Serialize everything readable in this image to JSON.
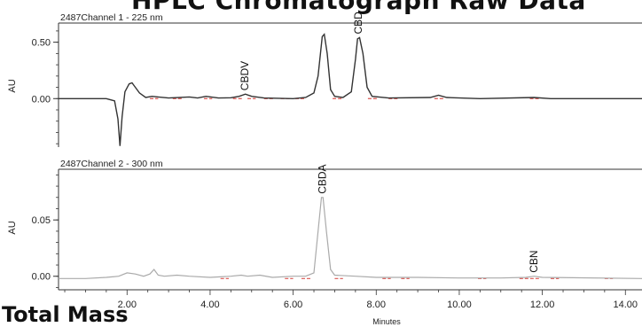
{
  "page": {
    "title": "HPLC Chromatograph Raw Data",
    "footer_title": "Total Mass"
  },
  "chart_data": [
    {
      "type": "line",
      "panel": "top",
      "channel_label": "2487Channel 1 - 225 nm",
      "xlabel": "",
      "ylabel": "AU",
      "xlim": [
        0.35,
        14.4
      ],
      "ylim": [
        -0.43,
        0.67
      ],
      "yticks": [
        0.0,
        0.5
      ],
      "ytick_labels": [
        "0.00",
        "0.50"
      ],
      "baseline": 0.0,
      "line_color": "#333333",
      "integration_color": "#d9534f",
      "series": [
        {
          "points": [
            [
              0.35,
              0.0
            ],
            [
              1.5,
              0.0
            ],
            [
              1.7,
              -0.02
            ],
            [
              1.78,
              -0.18
            ],
            [
              1.83,
              -0.42
            ],
            [
              1.88,
              -0.16
            ],
            [
              1.95,
              0.06
            ],
            [
              2.05,
              0.13
            ],
            [
              2.12,
              0.14
            ],
            [
              2.2,
              0.1
            ],
            [
              2.3,
              0.05
            ],
            [
              2.45,
              0.01
            ],
            [
              2.6,
              0.02
            ],
            [
              2.75,
              0.015
            ],
            [
              3.0,
              0.005
            ],
            [
              3.5,
              0.015
            ],
            [
              3.7,
              0.005
            ],
            [
              3.9,
              0.02
            ],
            [
              4.2,
              0.005
            ],
            [
              4.5,
              0.008
            ],
            [
              4.7,
              0.02
            ],
            [
              4.85,
              0.04
            ],
            [
              5.0,
              0.02
            ],
            [
              5.3,
              0.005
            ],
            [
              6.0,
              0.0
            ],
            [
              6.3,
              0.01
            ],
            [
              6.5,
              0.05
            ],
            [
              6.6,
              0.2
            ],
            [
              6.7,
              0.55
            ],
            [
              6.75,
              0.57
            ],
            [
              6.82,
              0.4
            ],
            [
              6.9,
              0.08
            ],
            [
              7.0,
              0.02
            ],
            [
              7.2,
              0.01
            ],
            [
              7.4,
              0.06
            ],
            [
              7.5,
              0.35
            ],
            [
              7.55,
              0.53
            ],
            [
              7.6,
              0.54
            ],
            [
              7.68,
              0.4
            ],
            [
              7.78,
              0.1
            ],
            [
              7.9,
              0.02
            ],
            [
              8.3,
              0.005
            ],
            [
              9.3,
              0.01
            ],
            [
              9.5,
              0.03
            ],
            [
              9.7,
              0.01
            ],
            [
              10.5,
              0.0
            ],
            [
              11.8,
              0.01
            ],
            [
              12.2,
              0.0
            ],
            [
              14.4,
              0.0
            ]
          ]
        }
      ],
      "integration_segments": [
        [
          2.55,
          2.75
        ],
        [
          3.1,
          3.35
        ],
        [
          3.85,
          4.05
        ],
        [
          4.55,
          4.8
        ],
        [
          4.9,
          5.1
        ],
        [
          5.3,
          5.55
        ],
        [
          5.7,
          5.95
        ],
        [
          6.05,
          6.3
        ],
        [
          6.95,
          7.2
        ],
        [
          7.8,
          8.05
        ],
        [
          8.3,
          8.55
        ],
        [
          9.4,
          9.65
        ],
        [
          11.7,
          11.95
        ]
      ],
      "annotations": [
        {
          "text": "CBDV",
          "x": 4.83
        },
        {
          "text": "CBD",
          "x": 7.57
        }
      ]
    },
    {
      "type": "line",
      "panel": "bottom",
      "channel_label": "2487Channel 2 - 300 nm",
      "xlabel": "Minutes",
      "ylabel": "AU",
      "xlim": [
        0.35,
        14.4
      ],
      "ylim": [
        -0.012,
        0.095
      ],
      "xticks": [
        2,
        4,
        6,
        8,
        10,
        12,
        14
      ],
      "xtick_labels": [
        "2.00",
        "4.00",
        "6.00",
        "8.00",
        "10.00",
        "12.00",
        "14.00"
      ],
      "yticks": [
        0.0,
        0.05
      ],
      "ytick_labels": [
        "0.00",
        "0.05"
      ],
      "baseline": -0.002,
      "line_color": "#aaaaaa",
      "integration_color": "#d9534f",
      "series": [
        {
          "points": [
            [
              0.35,
              -0.002
            ],
            [
              1.0,
              -0.002
            ],
            [
              1.5,
              -0.001
            ],
            [
              1.8,
              0.0
            ],
            [
              2.0,
              0.003
            ],
            [
              2.2,
              0.002
            ],
            [
              2.4,
              0.0
            ],
            [
              2.55,
              0.002
            ],
            [
              2.65,
              0.006
            ],
            [
              2.75,
              0.001
            ],
            [
              2.9,
              0.0
            ],
            [
              3.2,
              0.001
            ],
            [
              3.5,
              0.0
            ],
            [
              4.0,
              -0.001
            ],
            [
              4.5,
              0.0
            ],
            [
              4.75,
              0.001
            ],
            [
              4.9,
              0.0
            ],
            [
              5.2,
              0.001
            ],
            [
              5.5,
              -0.001
            ],
            [
              6.0,
              0.0
            ],
            [
              6.3,
              0.0
            ],
            [
              6.5,
              0.003
            ],
            [
              6.6,
              0.04
            ],
            [
              6.68,
              0.07
            ],
            [
              6.72,
              0.07
            ],
            [
              6.8,
              0.04
            ],
            [
              6.9,
              0.006
            ],
            [
              7.0,
              0.001
            ],
            [
              7.5,
              0.0
            ],
            [
              8.0,
              -0.001
            ],
            [
              9.0,
              -0.001
            ],
            [
              10.0,
              -0.0015
            ],
            [
              11.0,
              -0.0015
            ],
            [
              11.6,
              -0.001
            ],
            [
              11.8,
              0.0
            ],
            [
              12.0,
              -0.001
            ],
            [
              14.4,
              -0.002
            ]
          ]
        }
      ],
      "integration_segments": [
        [
          4.25,
          4.45
        ],
        [
          5.8,
          6.0
        ],
        [
          6.2,
          6.45
        ],
        [
          7.0,
          7.2
        ],
        [
          8.15,
          8.35
        ],
        [
          8.6,
          8.8
        ],
        [
          10.45,
          10.65
        ],
        [
          11.45,
          11.95
        ],
        [
          12.2,
          12.4
        ],
        [
          13.5,
          13.7
        ]
      ],
      "annotations": [
        {
          "text": "CBDA",
          "x": 6.7
        },
        {
          "text": "CBN",
          "x": 11.8
        }
      ]
    }
  ]
}
